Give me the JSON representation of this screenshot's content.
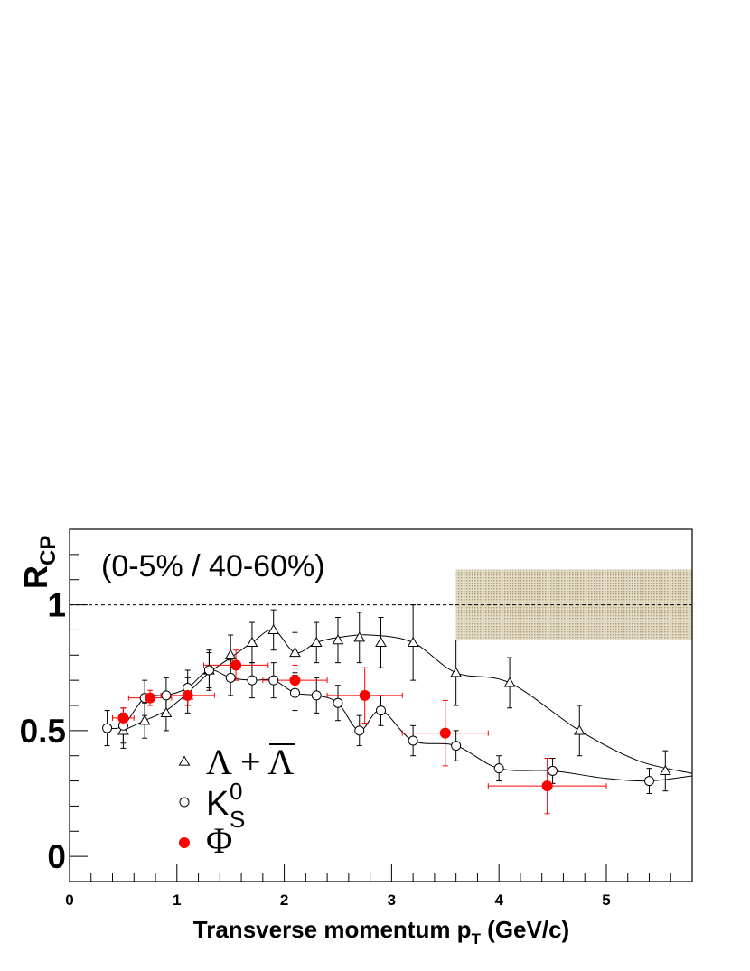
{
  "chart_data": {
    "type": "scatter",
    "title": "",
    "annotation": "(0-5% / 40-60%)",
    "xlabel": {
      "main": "Transverse momentum p",
      "sub": "T",
      "suffix": " (GeV/c)"
    },
    "ylabel": {
      "main": "R",
      "sub": "CP"
    },
    "xlim": [
      0,
      5.8
    ],
    "ylim": [
      -0.1,
      1.3
    ],
    "x_ticks": [
      0,
      1,
      2,
      3,
      4,
      5
    ],
    "x_tick_labels": [
      "0",
      "1",
      "2",
      "3",
      "4",
      "5"
    ],
    "y_ticks": [
      0,
      0.5,
      1
    ],
    "y_tick_labels": [
      "0",
      "0.5",
      "1"
    ],
    "reference_line": {
      "y": 1.0,
      "style": "dashed"
    },
    "systematic_band": {
      "x": [
        3.6,
        5.8
      ],
      "y": [
        0.86,
        1.14
      ],
      "color": "#d6cdb0"
    },
    "legend": {
      "placement": "bottom-left",
      "entries": [
        {
          "series": "lambda",
          "label": "Λ + Λ",
          "overline_second": true
        },
        {
          "series": "k0s",
          "label": "K",
          "sup": "0",
          "sub": "S"
        },
        {
          "series": "phi",
          "label": "Φ"
        }
      ]
    },
    "series": [
      {
        "key": "lambda",
        "marker": "open-triangle",
        "color": "#000000",
        "x": [
          0.5,
          0.7,
          0.9,
          1.1,
          1.3,
          1.5,
          1.7,
          1.9,
          2.1,
          2.3,
          2.5,
          2.7,
          2.9,
          3.2,
          3.6,
          4.1,
          4.75,
          5.55
        ],
        "y": [
          0.5,
          0.54,
          0.57,
          0.64,
          0.74,
          0.8,
          0.85,
          0.9,
          0.81,
          0.85,
          0.86,
          0.87,
          0.85,
          0.85,
          0.73,
          0.69,
          0.5,
          0.34
        ],
        "yerr": [
          0.07,
          0.07,
          0.07,
          0.07,
          0.08,
          0.08,
          0.08,
          0.08,
          0.08,
          0.08,
          0.09,
          0.1,
          0.1,
          0.15,
          0.13,
          0.1,
          0.1,
          0.08
        ],
        "curve_x": [
          0.5,
          0.7,
          0.9,
          1.1,
          1.3,
          1.5,
          1.7,
          1.9,
          2.1,
          2.3,
          2.5,
          2.8,
          3.2,
          3.6,
          4.1,
          4.75,
          5.3,
          5.8
        ],
        "curve_y": [
          0.5,
          0.54,
          0.58,
          0.65,
          0.73,
          0.79,
          0.85,
          0.9,
          0.81,
          0.85,
          0.87,
          0.88,
          0.85,
          0.73,
          0.69,
          0.5,
          0.38,
          0.33
        ]
      },
      {
        "key": "k0s",
        "marker": "open-circle",
        "color": "#000000",
        "x": [
          0.35,
          0.5,
          0.7,
          0.9,
          1.1,
          1.3,
          1.5,
          1.7,
          1.9,
          2.1,
          2.3,
          2.5,
          2.7,
          2.9,
          3.2,
          3.6,
          4.0,
          4.5,
          5.4
        ],
        "y": [
          0.51,
          0.52,
          0.63,
          0.64,
          0.67,
          0.74,
          0.71,
          0.7,
          0.7,
          0.65,
          0.64,
          0.61,
          0.5,
          0.58,
          0.46,
          0.44,
          0.35,
          0.34,
          0.3
        ],
        "yerr": [
          0.07,
          0.07,
          0.07,
          0.07,
          0.07,
          0.07,
          0.07,
          0.07,
          0.07,
          0.07,
          0.07,
          0.07,
          0.06,
          0.06,
          0.06,
          0.06,
          0.05,
          0.05,
          0.05
        ],
        "curve_x": [
          0.35,
          0.5,
          0.7,
          0.9,
          1.1,
          1.3,
          1.5,
          1.7,
          1.9,
          2.1,
          2.3,
          2.5,
          2.7,
          2.9,
          3.2,
          3.6,
          4.0,
          4.5,
          5.0,
          5.4,
          5.8
        ],
        "curve_y": [
          0.51,
          0.52,
          0.63,
          0.64,
          0.67,
          0.74,
          0.71,
          0.7,
          0.7,
          0.65,
          0.64,
          0.61,
          0.5,
          0.58,
          0.46,
          0.44,
          0.35,
          0.34,
          0.31,
          0.3,
          0.32
        ]
      },
      {
        "key": "phi",
        "marker": "filled-circle",
        "color": "#ff0000",
        "x": [
          0.5,
          0.75,
          1.1,
          1.55,
          2.1,
          2.75,
          3.5,
          4.45
        ],
        "y": [
          0.55,
          0.63,
          0.64,
          0.76,
          0.7,
          0.64,
          0.49,
          0.28
        ],
        "xerr": [
          0.1,
          0.2,
          0.25,
          0.3,
          0.3,
          0.35,
          0.4,
          0.55
        ],
        "yerr": [
          0.04,
          0.03,
          0.04,
          0.06,
          0.06,
          0.11,
          0.13,
          0.11
        ]
      }
    ]
  }
}
